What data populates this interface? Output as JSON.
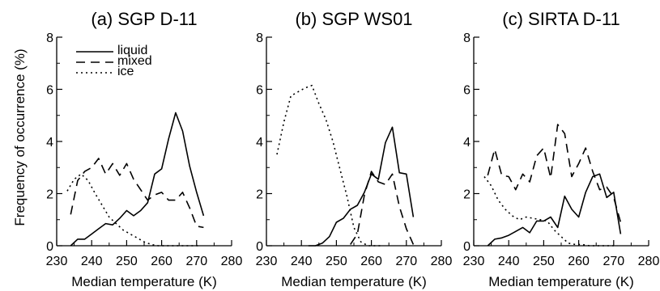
{
  "figure": {
    "ylabel": "Frequency of occurrence (%)"
  },
  "legend": [
    {
      "name": "liquid",
      "style": "solid"
    },
    {
      "name": "mixed",
      "style": "dashed"
    },
    {
      "name": "ice",
      "style": "dotted"
    }
  ],
  "chart_data": [
    {
      "type": "line",
      "title": "(a) SGP D-11",
      "xlabel": "Median temperature (K)",
      "xlim": [
        230,
        280
      ],
      "ylim": [
        0,
        8
      ],
      "xticks": [
        230,
        240,
        250,
        260,
        270,
        280
      ],
      "yticks": [
        0,
        2,
        4,
        6,
        8
      ],
      "legend_position": "top-left",
      "series": [
        {
          "name": "liquid",
          "style": "solid",
          "x": [
            234,
            236,
            238,
            240,
            242,
            244,
            246,
            248,
            250,
            252,
            254,
            256,
            258,
            260,
            262,
            264,
            266,
            268,
            270,
            272
          ],
          "y": [
            0.0,
            0.25,
            0.25,
            0.45,
            0.65,
            0.85,
            0.8,
            1.05,
            1.35,
            1.15,
            1.35,
            1.65,
            2.75,
            2.95,
            4.1,
            5.1,
            4.4,
            3.05,
            2.05,
            1.15
          ]
        },
        {
          "name": "mixed",
          "style": "dashed",
          "x": [
            234,
            236,
            238,
            240,
            242,
            244,
            246,
            248,
            250,
            252,
            254,
            256,
            258,
            260,
            262,
            264,
            266,
            268,
            270,
            272
          ],
          "y": [
            1.2,
            2.5,
            2.85,
            3.0,
            3.35,
            2.75,
            3.15,
            2.7,
            3.15,
            2.55,
            2.15,
            1.75,
            1.95,
            2.05,
            1.75,
            1.75,
            2.05,
            1.45,
            0.75,
            0.7
          ]
        },
        {
          "name": "ice",
          "style": "dotted",
          "x": [
            233,
            235,
            237,
            239,
            241,
            243,
            245,
            247,
            249,
            251,
            253,
            255,
            257,
            259,
            261,
            263,
            265,
            267,
            269,
            271
          ],
          "y": [
            2.1,
            2.55,
            2.75,
            2.5,
            2.0,
            1.55,
            1.1,
            0.85,
            0.6,
            0.45,
            0.3,
            0.15,
            0.05,
            0.0,
            0.0,
            0.0,
            0.0,
            0.0,
            0.0,
            0.0
          ]
        }
      ]
    },
    {
      "type": "line",
      "title": "(b) SGP WS01",
      "xlabel": "Median temperature (K)",
      "xlim": [
        230,
        280
      ],
      "ylim": [
        0,
        8
      ],
      "xticks": [
        230,
        240,
        250,
        260,
        270,
        280
      ],
      "yticks": [
        0,
        2,
        4,
        6,
        8
      ],
      "series": [
        {
          "name": "liquid",
          "style": "solid",
          "x": [
            242,
            244,
            246,
            248,
            250,
            252,
            254,
            256,
            258,
            260,
            262,
            264,
            266,
            268,
            270,
            272
          ],
          "y": [
            0.0,
            0.0,
            0.1,
            0.35,
            0.9,
            1.05,
            1.4,
            1.55,
            2.05,
            2.75,
            2.55,
            3.95,
            4.55,
            2.8,
            2.75,
            1.1
          ]
        },
        {
          "name": "mixed",
          "style": "dashed",
          "x": [
            254,
            256,
            258,
            260,
            262,
            264,
            266,
            268,
            270,
            272
          ],
          "y": [
            0.05,
            0.45,
            1.95,
            2.85,
            2.45,
            2.35,
            2.75,
            1.5,
            0.65,
            0.05
          ]
        },
        {
          "name": "ice",
          "style": "dotted",
          "x": [
            233,
            235,
            237,
            239,
            241,
            243,
            245,
            247,
            249,
            251,
            253,
            255,
            257,
            259,
            261,
            263
          ],
          "y": [
            3.5,
            4.75,
            5.75,
            5.9,
            6.05,
            6.15,
            5.45,
            4.85,
            4.0,
            2.95,
            1.9,
            0.7,
            0.15,
            0.0,
            0.0,
            0.0
          ]
        }
      ]
    },
    {
      "type": "line",
      "title": "(c) SIRTA D-11",
      "xlabel": "Median temperature (K)",
      "xlim": [
        230,
        280
      ],
      "ylim": [
        0,
        8
      ],
      "xticks": [
        230,
        240,
        250,
        260,
        270,
        280
      ],
      "yticks": [
        0,
        2,
        4,
        6,
        8
      ],
      "series": [
        {
          "name": "liquid",
          "style": "solid",
          "x": [
            234,
            236,
            238,
            240,
            242,
            244,
            246,
            248,
            250,
            252,
            254,
            256,
            258,
            260,
            262,
            264,
            266,
            268,
            270,
            272
          ],
          "y": [
            0.0,
            0.25,
            0.3,
            0.4,
            0.55,
            0.7,
            0.5,
            0.95,
            0.95,
            1.1,
            0.7,
            1.9,
            1.4,
            1.1,
            2.05,
            2.65,
            2.75,
            1.85,
            2.05,
            0.45
          ]
        },
        {
          "name": "mixed",
          "style": "dashed",
          "x": [
            234,
            236,
            238,
            240,
            242,
            244,
            246,
            248,
            250,
            252,
            254,
            256,
            258,
            260,
            262,
            264,
            266,
            268,
            270,
            272
          ],
          "y": [
            2.7,
            3.7,
            2.7,
            2.65,
            2.15,
            2.75,
            2.45,
            3.45,
            3.75,
            2.6,
            4.65,
            4.3,
            2.65,
            3.15,
            3.75,
            2.85,
            2.15,
            2.25,
            1.85,
            0.9
          ]
        },
        {
          "name": "ice",
          "style": "dotted",
          "x": [
            233,
            235,
            237,
            239,
            241,
            243,
            245,
            247,
            249,
            251,
            253,
            255,
            257,
            259,
            261,
            263,
            265,
            267,
            269,
            271
          ],
          "y": [
            2.65,
            2.3,
            1.75,
            1.4,
            1.15,
            1.0,
            1.1,
            1.05,
            1.0,
            0.95,
            0.6,
            0.35,
            0.1,
            0.05,
            0.05,
            0.0,
            0.0,
            0.0,
            0.0,
            0.0
          ]
        }
      ]
    }
  ]
}
